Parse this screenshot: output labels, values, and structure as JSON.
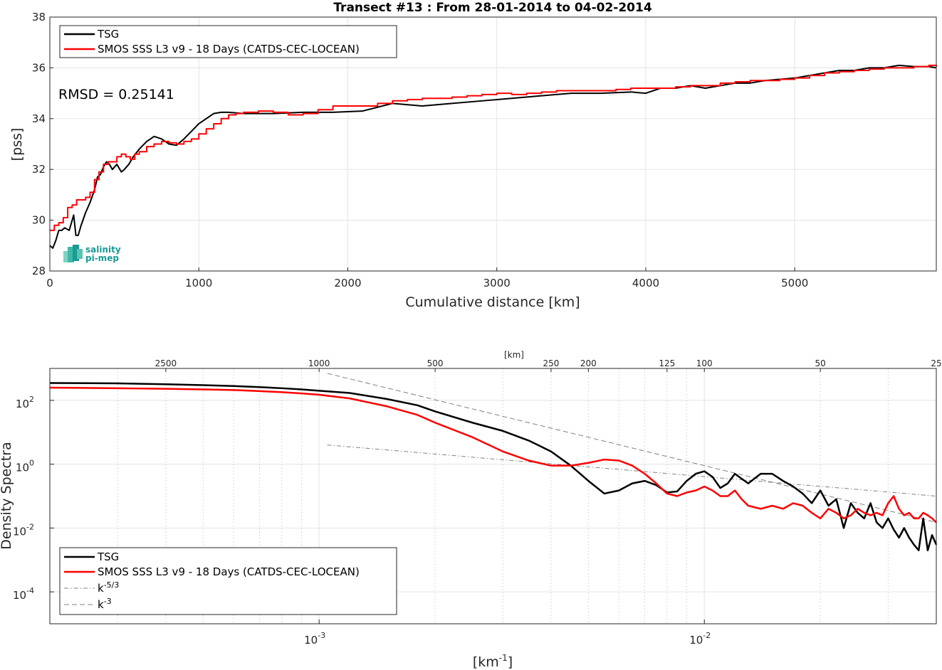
{
  "chart_data": [
    {
      "type": "line",
      "title": "Transect #13 : From 28-01-2014 to 04-02-2014",
      "xlabel": "Cumulative distance [km]",
      "ylabel": "[pss]",
      "xlim": [
        0,
        5950
      ],
      "ylim": [
        28,
        38
      ],
      "xticks": [
        "0",
        "1000",
        "2000",
        "3000",
        "4000",
        "5000"
      ],
      "yticks": [
        "28",
        "30",
        "32",
        "34",
        "36",
        "38"
      ],
      "grid": true,
      "legend_position": "top-left",
      "annotation": "RMSD = 0.25141",
      "logo": "salinity pi-mep",
      "series": [
        {
          "name": "TSG",
          "color": "#000000",
          "x": [
            0,
            20,
            40,
            60,
            80,
            100,
            130,
            160,
            175,
            190,
            210,
            240,
            270,
            300,
            320,
            340,
            360,
            380,
            400,
            420,
            450,
            480,
            500,
            530,
            560,
            600,
            650,
            700,
            750,
            800,
            850,
            900,
            950,
            1000,
            1050,
            1100,
            1150,
            1200,
            1300,
            1500,
            1700,
            1900,
            2100,
            2300,
            2500,
            2700,
            2900,
            3100,
            3300,
            3500,
            3700,
            3900,
            4000,
            4100,
            4200,
            4300,
            4400,
            4500,
            4600,
            4700,
            4800,
            4900,
            5000,
            5100,
            5200,
            5300,
            5400,
            5500,
            5600,
            5700,
            5800,
            5900,
            5950
          ],
          "y": [
            29.0,
            28.9,
            29.2,
            29.6,
            29.6,
            29.7,
            29.6,
            30.2,
            29.4,
            29.4,
            29.8,
            30.3,
            30.7,
            31.2,
            31.7,
            31.8,
            32.1,
            32.3,
            32.2,
            32.0,
            32.2,
            31.9,
            32.0,
            32.2,
            32.5,
            32.8,
            33.1,
            33.3,
            33.2,
            33.0,
            32.95,
            33.2,
            33.5,
            33.8,
            34.0,
            34.2,
            34.25,
            34.25,
            34.2,
            34.2,
            34.25,
            34.25,
            34.3,
            34.6,
            34.5,
            34.6,
            34.7,
            34.8,
            34.9,
            35.0,
            35.0,
            35.05,
            35.0,
            35.2,
            35.2,
            35.3,
            35.2,
            35.3,
            35.4,
            35.4,
            35.5,
            35.55,
            35.6,
            35.7,
            35.8,
            35.9,
            35.9,
            36.0,
            36.0,
            36.1,
            36.05,
            36.05,
            36.0
          ]
        },
        {
          "name": "SMOS SSS L3 v9 - 18 Days (CATDS-CEC-LOCEAN)",
          "color": "#ff0000",
          "x": [
            0,
            30,
            60,
            90,
            120,
            150,
            180,
            210,
            240,
            270,
            300,
            330,
            360,
            390,
            420,
            450,
            480,
            510,
            540,
            570,
            600,
            650,
            700,
            750,
            800,
            850,
            900,
            950,
            1000,
            1050,
            1100,
            1150,
            1200,
            1250,
            1300,
            1400,
            1500,
            1600,
            1700,
            1800,
            1900,
            2000,
            2100,
            2200,
            2300,
            2400,
            2500,
            2600,
            2700,
            2800,
            2900,
            3000,
            3100,
            3200,
            3300,
            3400,
            3500,
            3600,
            3700,
            3800,
            3900,
            4000,
            4100,
            4200,
            4300,
            4400,
            4500,
            4600,
            4700,
            4800,
            4900,
            5000,
            5100,
            5200,
            5300,
            5400,
            5500,
            5600,
            5700,
            5800,
            5900,
            5950
          ],
          "y": [
            29.6,
            29.8,
            29.9,
            30.1,
            30.5,
            30.6,
            30.8,
            30.8,
            30.9,
            31.1,
            31.6,
            31.9,
            32.2,
            32.3,
            32.3,
            32.5,
            32.6,
            32.5,
            32.4,
            32.6,
            32.7,
            32.9,
            33.0,
            33.1,
            33.05,
            33.0,
            33.1,
            33.2,
            33.4,
            33.6,
            33.8,
            34.0,
            34.15,
            34.2,
            34.25,
            34.3,
            34.25,
            34.15,
            34.2,
            34.35,
            34.5,
            34.5,
            34.5,
            34.6,
            34.7,
            34.75,
            34.8,
            34.8,
            34.85,
            34.9,
            34.95,
            35.0,
            34.95,
            35.0,
            35.05,
            35.1,
            35.1,
            35.1,
            35.1,
            35.15,
            35.2,
            35.2,
            35.2,
            35.25,
            35.3,
            35.3,
            35.4,
            35.45,
            35.5,
            35.5,
            35.55,
            35.6,
            35.7,
            35.8,
            35.85,
            35.9,
            35.95,
            36.0,
            36.0,
            36.05,
            36.1,
            36.05
          ]
        }
      ]
    },
    {
      "type": "line",
      "title": "",
      "xlabel": "[km",
      "xlabel_sup": "-1",
      "xlabel_tail": "]",
      "ylabel": "Density Spectra",
      "top_axis_label": "[km]",
      "xscale": "log",
      "yscale": "log",
      "xlim": [
        0.0002,
        0.04
      ],
      "ylim": [
        1e-05,
        1000
      ],
      "xticks": [
        {
          "base": "10",
          "exp": "-3",
          "value": 0.001
        },
        {
          "base": "10",
          "exp": "-2",
          "value": 0.01
        }
      ],
      "yticks": [
        {
          "base": "10",
          "exp": "-4",
          "value": 0.0001
        },
        {
          "base": "10",
          "exp": "-2",
          "value": 0.01
        },
        {
          "base": "10",
          "exp": "0",
          "value": 1
        },
        {
          "base": "10",
          "exp": "2",
          "value": 100
        }
      ],
      "top_ticks": [
        {
          "label": "2500",
          "wavelength_km": 2500
        },
        {
          "label": "1000",
          "wavelength_km": 1000
        },
        {
          "label": "500",
          "wavelength_km": 500
        },
        {
          "label": "250",
          "wavelength_km": 250
        },
        {
          "label": "200",
          "wavelength_km": 200
        },
        {
          "label": "125",
          "wavelength_km": 125
        },
        {
          "label": "100",
          "wavelength_km": 100
        },
        {
          "label": "50",
          "wavelength_km": 50
        },
        {
          "label": "25",
          "wavelength_km": 25
        }
      ],
      "grid": true,
      "legend_position": "bottom-left",
      "series": [
        {
          "name": "TSG",
          "color": "#000000",
          "x": [
            0.0002,
            0.0003,
            0.0004,
            0.0005,
            0.0006,
            0.0007,
            0.0008,
            0.0009,
            0.001,
            0.0012,
            0.0015,
            0.0018,
            0.002,
            0.0025,
            0.003,
            0.0035,
            0.004,
            0.0045,
            0.005,
            0.0055,
            0.006,
            0.0065,
            0.007,
            0.0075,
            0.008,
            0.0085,
            0.009,
            0.0095,
            0.01,
            0.0105,
            0.011,
            0.0115,
            0.012,
            0.0125,
            0.013,
            0.014,
            0.015,
            0.016,
            0.017,
            0.018,
            0.019,
            0.02,
            0.021,
            0.022,
            0.023,
            0.024,
            0.025,
            0.026,
            0.027,
            0.028,
            0.029,
            0.03,
            0.031,
            0.032,
            0.033,
            0.034,
            0.035,
            0.036,
            0.037,
            0.038,
            0.039,
            0.04
          ],
          "y": [
            350,
            340,
            320,
            300,
            280,
            260,
            240,
            220,
            200,
            170,
            110,
            70,
            45,
            20,
            11,
            5.5,
            2.5,
            0.9,
            0.3,
            0.12,
            0.15,
            0.25,
            0.3,
            0.22,
            0.13,
            0.14,
            0.3,
            0.5,
            0.6,
            0.4,
            0.18,
            0.25,
            0.5,
            0.35,
            0.25,
            0.5,
            0.5,
            0.3,
            0.2,
            0.12,
            0.06,
            0.15,
            0.05,
            0.08,
            0.01,
            0.06,
            0.03,
            0.02,
            0.06,
            0.015,
            0.01,
            0.02,
            0.009,
            0.005,
            0.01,
            0.005,
            0.003,
            0.002,
            0.02,
            0.002,
            0.006,
            0.003
          ]
        },
        {
          "name": "SMOS SSS L3 v9 - 18 Days (CATDS-CEC-LOCEAN)",
          "color": "#ff0000",
          "x": [
            0.0002,
            0.0003,
            0.0004,
            0.0005,
            0.0006,
            0.0007,
            0.0008,
            0.0009,
            0.001,
            0.0012,
            0.0015,
            0.0018,
            0.002,
            0.0025,
            0.003,
            0.0035,
            0.004,
            0.0045,
            0.005,
            0.0055,
            0.006,
            0.0065,
            0.007,
            0.0075,
            0.008,
            0.0085,
            0.009,
            0.0095,
            0.01,
            0.0105,
            0.011,
            0.0115,
            0.012,
            0.0125,
            0.013,
            0.014,
            0.015,
            0.016,
            0.017,
            0.018,
            0.019,
            0.02,
            0.021,
            0.022,
            0.023,
            0.024,
            0.025,
            0.026,
            0.027,
            0.028,
            0.029,
            0.03,
            0.031,
            0.032,
            0.033,
            0.034,
            0.035,
            0.036,
            0.037,
            0.038,
            0.039,
            0.04
          ],
          "y": [
            250,
            240,
            230,
            220,
            210,
            195,
            180,
            165,
            150,
            115,
            65,
            35,
            20,
            7,
            2.5,
            1.3,
            0.9,
            0.9,
            1.1,
            1.4,
            1.3,
            0.9,
            0.5,
            0.25,
            0.12,
            0.1,
            0.13,
            0.15,
            0.2,
            0.15,
            0.1,
            0.1,
            0.15,
            0.08,
            0.05,
            0.04,
            0.05,
            0.04,
            0.06,
            0.05,
            0.03,
            0.02,
            0.04,
            0.03,
            0.02,
            0.025,
            0.04,
            0.03,
            0.025,
            0.03,
            0.025,
            0.06,
            0.1,
            0.04,
            0.025,
            0.03,
            0.02,
            0.02,
            0.03,
            0.025,
            0.02,
            0.015
          ]
        },
        {
          "name": "k",
          "name_sup": "-5/3",
          "color": "#808080",
          "dash": "dash-dot",
          "x": [
            0.00105,
            0.04
          ],
          "y": [
            4,
            0.1
          ]
        },
        {
          "name": "k",
          "name_sup": "-3",
          "color": "#808080",
          "dash": "dashed",
          "x": [
            0.00105,
            0.04
          ],
          "y": [
            700,
            0.015
          ]
        }
      ]
    }
  ]
}
